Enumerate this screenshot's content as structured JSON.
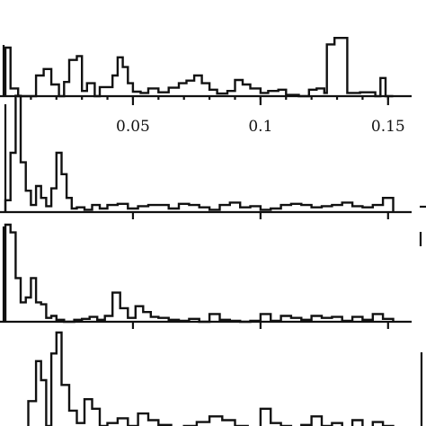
{
  "chart_data": [
    {
      "type": "histogram",
      "panel": "top",
      "x_range": [
        0.0,
        0.155
      ],
      "x_ticks": [
        0.05,
        0.1,
        0.15
      ],
      "x_tick_labels": [
        "0.05",
        "0.1",
        "0.15"
      ],
      "y_range": [
        0,
        1
      ],
      "bin_edges": [
        0.0,
        0.002,
        0.005,
        0.012,
        0.015,
        0.018,
        0.021,
        0.023,
        0.025,
        0.028,
        0.03,
        0.032,
        0.035,
        0.037,
        0.042,
        0.044,
        0.046,
        0.048,
        0.05,
        0.053,
        0.056,
        0.06,
        0.064,
        0.068,
        0.071,
        0.074,
        0.077,
        0.08,
        0.083,
        0.087,
        0.09,
        0.093,
        0.096,
        0.1,
        0.103,
        0.107,
        0.11,
        0.115,
        0.119,
        0.122,
        0.125,
        0.126,
        0.129,
        0.134,
        0.139,
        0.145,
        0.147,
        0.149,
        0.152
      ],
      "counts": [
        0.75,
        0.12,
        0.0,
        0.32,
        0.42,
        0.18,
        0.0,
        0.22,
        0.56,
        0.62,
        0.08,
        0.2,
        0.0,
        0.14,
        0.32,
        0.6,
        0.45,
        0.2,
        0.07,
        0.05,
        0.12,
        0.06,
        0.13,
        0.2,
        0.24,
        0.32,
        0.2,
        0.1,
        0.04,
        0.08,
        0.25,
        0.18,
        0.12,
        0.05,
        0.08,
        0.1,
        0.02,
        0.0,
        0.1,
        0.12,
        0.05,
        0.8,
        0.9,
        0.05,
        0.06,
        0.0,
        0.28,
        0.0
      ]
    },
    {
      "type": "histogram",
      "panel": "second",
      "x_range": [
        0.0,
        0.155
      ],
      "y_range": [
        0,
        1
      ],
      "bin_edges": [
        0.0,
        0.002,
        0.004,
        0.006,
        0.008,
        0.01,
        0.012,
        0.014,
        0.016,
        0.018,
        0.02,
        0.022,
        0.024,
        0.026,
        0.028,
        0.031,
        0.034,
        0.037,
        0.04,
        0.044,
        0.048,
        0.052,
        0.056,
        0.06,
        0.064,
        0.068,
        0.072,
        0.076,
        0.08,
        0.084,
        0.088,
        0.092,
        0.096,
        0.1,
        0.104,
        0.108,
        0.112,
        0.116,
        0.12,
        0.124,
        0.128,
        0.132,
        0.136,
        0.14,
        0.144,
        0.148,
        0.152
      ],
      "counts": [
        0.1,
        0.5,
        0.98,
        0.42,
        0.18,
        0.06,
        0.22,
        0.12,
        0.05,
        0.2,
        0.5,
        0.32,
        0.12,
        0.03,
        0.04,
        0.02,
        0.06,
        0.03,
        0.06,
        0.07,
        0.03,
        0.05,
        0.06,
        0.06,
        0.03,
        0.07,
        0.06,
        0.04,
        0.02,
        0.06,
        0.08,
        0.04,
        0.05,
        0.02,
        0.03,
        0.06,
        0.07,
        0.06,
        0.04,
        0.05,
        0.06,
        0.08,
        0.05,
        0.04,
        0.06,
        0.12
      ]
    },
    {
      "type": "histogram",
      "panel": "third",
      "x_range": [
        0.0,
        0.155
      ],
      "y_range": [
        0,
        1
      ],
      "bin_edges": [
        0.0,
        0.002,
        0.004,
        0.006,
        0.008,
        0.01,
        0.012,
        0.014,
        0.016,
        0.018,
        0.02,
        0.023,
        0.027,
        0.03,
        0.033,
        0.036,
        0.039,
        0.042,
        0.045,
        0.048,
        0.051,
        0.054,
        0.057,
        0.06,
        0.064,
        0.068,
        0.072,
        0.076,
        0.08,
        0.084,
        0.088,
        0.092,
        0.096,
        0.1,
        0.104,
        0.108,
        0.112,
        0.116,
        0.12,
        0.124,
        0.128,
        0.132,
        0.136,
        0.14,
        0.144,
        0.148,
        0.152
      ],
      "counts": [
        1.0,
        0.92,
        0.45,
        0.2,
        0.25,
        0.45,
        0.2,
        0.18,
        0.04,
        0.06,
        0.02,
        0.0,
        0.02,
        0.03,
        0.05,
        0.02,
        0.06,
        0.3,
        0.14,
        0.04,
        0.16,
        0.1,
        0.05,
        0.04,
        0.02,
        0.01,
        0.03,
        0.0,
        0.08,
        0.02,
        0.01,
        0.0,
        0.01,
        0.08,
        0.01,
        0.06,
        0.04,
        0.02,
        0.06,
        0.04,
        0.05,
        0.01,
        0.05,
        0.02,
        0.08,
        0.03
      ]
    },
    {
      "type": "histogram",
      "panel": "bottom",
      "x_range": [
        0.0,
        0.155
      ],
      "y_range": [
        0,
        1
      ],
      "bin_edges": [
        0.009,
        0.012,
        0.014,
        0.016,
        0.018,
        0.02,
        0.022,
        0.025,
        0.028,
        0.031,
        0.034,
        0.037,
        0.04,
        0.044,
        0.048,
        0.052,
        0.056,
        0.06,
        0.065,
        0.07,
        0.075,
        0.08,
        0.085,
        0.09,
        0.095,
        0.1,
        0.104,
        0.108,
        0.112,
        0.116,
        0.12,
        0.124,
        0.128,
        0.132,
        0.136,
        0.14,
        0.144,
        0.148,
        0.152
      ],
      "counts": [
        0.28,
        0.7,
        0.5,
        0.02,
        0.78,
        1.0,
        0.45,
        0.18,
        0.05,
        0.3,
        0.2,
        0.02,
        0.05,
        0.1,
        0.02,
        0.15,
        0.08,
        0.03,
        0.0,
        0.02,
        0.06,
        0.12,
        0.08,
        0.02,
        0.0,
        0.2,
        0.05,
        0.02,
        0.0,
        0.03,
        0.12,
        0.02,
        0.05,
        0.0,
        0.08,
        0.0,
        0.06,
        0.02
      ]
    }
  ]
}
